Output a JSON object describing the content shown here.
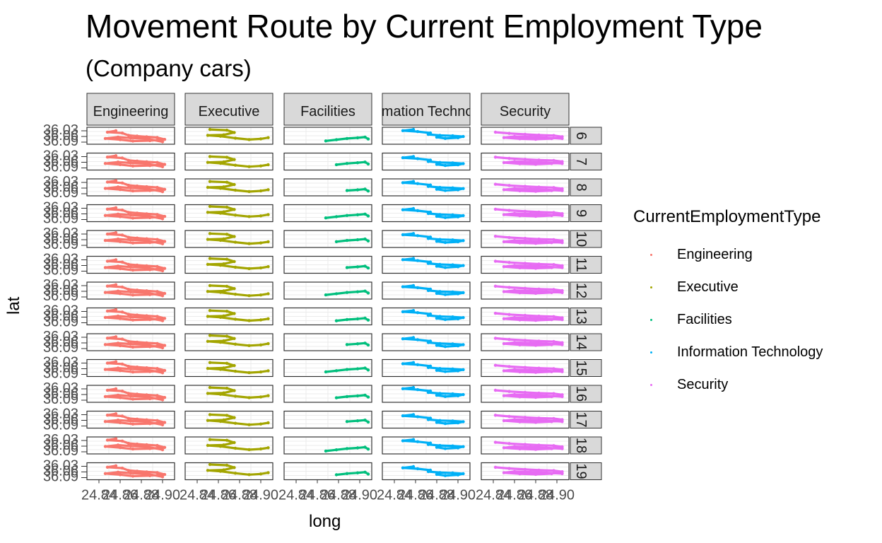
{
  "title": "Movement Route by Current Employment Type",
  "subtitle": "(Company cars)",
  "colors": {
    "Engineering": "#F8766D",
    "Executive": "#A3A500",
    "Facilities": "#00BF7D",
    "Information Technology": "#00B0F6",
    "Security": "#E76BF3",
    "strip_fill": "#D9D9D9",
    "grid": "#EBEBEB"
  },
  "chart_data": {
    "type": "scatter",
    "facets": "grid: columns = CurrentEmploymentType, rows = day",
    "column_strips": [
      "Engineering",
      "Executive",
      "Facilities",
      "Information Technology",
      "Security"
    ],
    "row_strips": [
      "6",
      "7",
      "8",
      "9",
      "10",
      "11",
      "12",
      "13",
      "14",
      "15",
      "16",
      "17",
      "18",
      "19"
    ],
    "xlabel": "long",
    "ylabel": "lat",
    "x_tick_labels": [
      "24.84",
      "24.86",
      "24.88",
      "24.90"
    ],
    "y_tick_labels": [
      "36.03",
      "36.06",
      "36.09"
    ],
    "xlim": [
      24.83,
      24.91
    ],
    "ylim": [
      36.04,
      36.1
    ],
    "grid": true,
    "legend": {
      "title": "CurrentEmploymentType",
      "position": "right",
      "entries": [
        "Engineering",
        "Executive",
        "Facilities",
        "Information Technology",
        "Security"
      ]
    },
    "note": "Per-panel points are dense GPS tracks approximated as route polylines (long, lat)",
    "series": [
      {
        "name": "Engineering",
        "route": [
          [
            24.856,
            36.095
          ],
          [
            24.848,
            36.089
          ],
          [
            24.862,
            36.085
          ],
          [
            24.868,
            36.075
          ],
          [
            24.876,
            36.072
          ],
          [
            24.885,
            36.069
          ],
          [
            24.895,
            36.066
          ],
          [
            24.902,
            36.058
          ],
          [
            24.888,
            36.053
          ],
          [
            24.872,
            36.051
          ],
          [
            24.86,
            36.057
          ],
          [
            24.846,
            36.062
          ],
          [
            24.858,
            36.068
          ],
          [
            24.87,
            36.064
          ],
          [
            24.885,
            36.061
          ],
          [
            24.9,
            36.048
          ]
        ]
      },
      {
        "name": "Executive",
        "route": [
          [
            24.852,
            36.095
          ],
          [
            24.868,
            36.092
          ],
          [
            24.875,
            36.082
          ],
          [
            24.865,
            36.072
          ],
          [
            24.85,
            36.07
          ],
          [
            24.862,
            36.066
          ],
          [
            24.876,
            36.058
          ],
          [
            24.889,
            36.052
          ],
          [
            24.9,
            36.055
          ],
          [
            24.907,
            36.06
          ]
        ]
      },
      {
        "name": "Facilities",
        "route": [
          [
            24.868,
            36.05
          ],
          [
            24.878,
            36.055
          ],
          [
            24.888,
            36.06
          ],
          [
            24.898,
            36.063
          ],
          [
            24.905,
            36.066
          ],
          [
            24.908,
            36.058
          ]
        ]
      },
      {
        "name": "Information Technology",
        "route": [
          [
            24.858,
            36.093
          ],
          [
            24.848,
            36.088
          ],
          [
            24.862,
            36.084
          ],
          [
            24.874,
            36.078
          ],
          [
            24.872,
            36.072
          ],
          [
            24.883,
            36.068
          ],
          [
            24.895,
            36.066
          ],
          [
            24.905,
            36.063
          ],
          [
            24.9,
            36.058
          ],
          [
            24.888,
            36.055
          ],
          [
            24.88,
            36.06
          ]
        ]
      },
      {
        "name": "Security",
        "route": [
          [
            24.842,
            36.085
          ],
          [
            24.855,
            36.08
          ],
          [
            24.87,
            36.076
          ],
          [
            24.883,
            36.073
          ],
          [
            24.897,
            36.071
          ],
          [
            24.905,
            36.066
          ],
          [
            24.895,
            36.058
          ],
          [
            24.88,
            36.055
          ],
          [
            24.865,
            36.057
          ],
          [
            24.85,
            36.062
          ],
          [
            24.86,
            36.067
          ],
          [
            24.875,
            36.065
          ],
          [
            24.89,
            36.062
          ],
          [
            24.905,
            36.058
          ]
        ]
      }
    ]
  }
}
